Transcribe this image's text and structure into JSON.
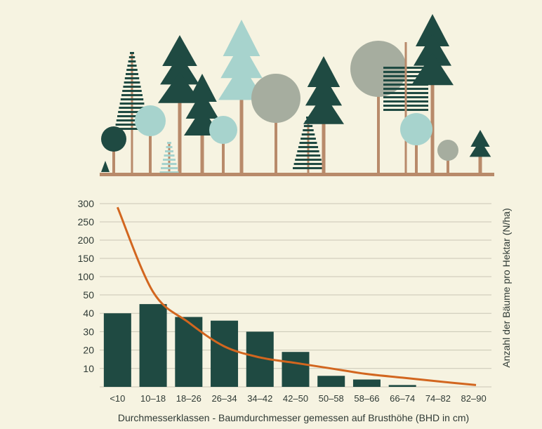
{
  "colors": {
    "background": "#f6f3e1",
    "bar": "#1f4a42",
    "curve": "#d2661f",
    "grid": "#c9c6b5",
    "trunk": "#b88a6a",
    "tree_dark": "#1f4a42",
    "tree_light": "#a7d3cd",
    "tree_grey": "#a6ad9f"
  },
  "illustration": {
    "description_icon": "forest-trees-icon"
  },
  "chart_data": {
    "type": "bar",
    "xlabel": "Durchmesserklassen - Baumdurchmesser gemessen auf Brusthöhe (BHD in cm)",
    "ylabel": "Anzahl der Bäume pro Hektar (N/ha)",
    "y_ticks": [
      "10",
      "20",
      "30",
      "40",
      "50",
      "100",
      "150",
      "200",
      "250",
      "300"
    ],
    "y_tick_values": [
      10,
      20,
      30,
      40,
      50,
      100,
      150,
      200,
      250,
      300
    ],
    "axis_scale": "piecewise: linear 0-50 in lower part, linear 50-300 in upper part",
    "ylim": [
      0,
      300
    ],
    "grid": true,
    "categories": [
      "<10",
      "10–18",
      "18–26",
      "26–34",
      "34–42",
      "42–50",
      "50–58",
      "58–66",
      "66–74",
      "74–82",
      "82–90"
    ],
    "series": [
      {
        "type": "bar",
        "values": [
          40,
          45,
          38,
          36,
          30,
          19,
          6,
          4,
          1,
          0,
          0
        ]
      },
      {
        "type": "line",
        "values": [
          290,
          58,
          35,
          22,
          16,
          13,
          10,
          7,
          5,
          3,
          1
        ]
      }
    ]
  }
}
